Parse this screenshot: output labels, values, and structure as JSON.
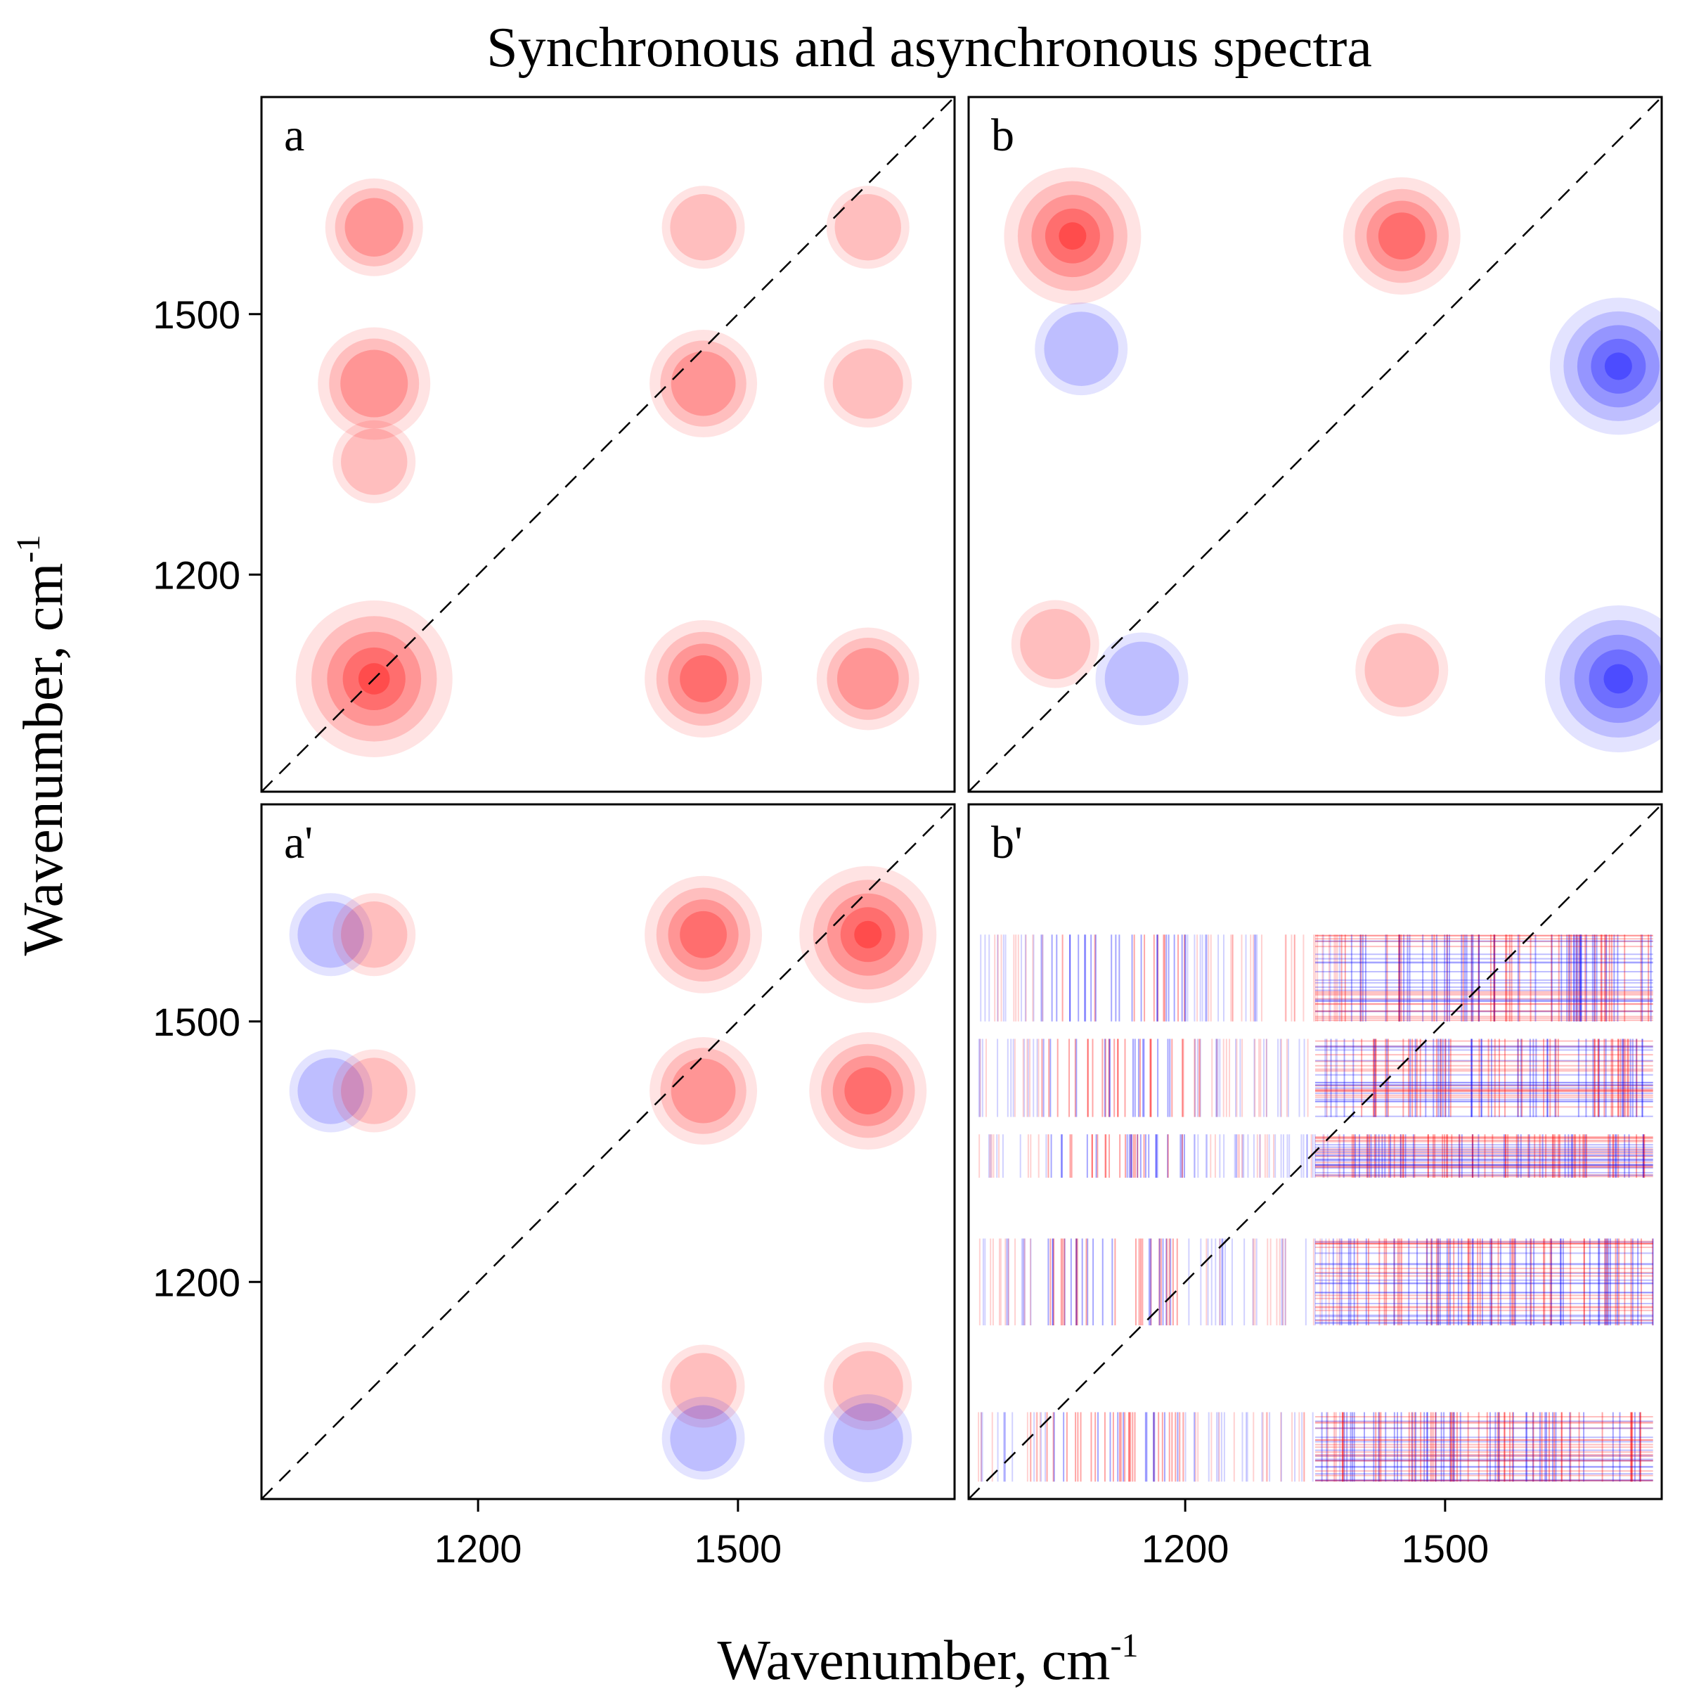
{
  "chart_data": {
    "type": "heatmap",
    "title": "Synchronous and asynchronous spectra",
    "xlabel": {
      "text": "Wavenumber, cm",
      "sup": "-1"
    },
    "ylabel": {
      "text": "Wavenumber, cm",
      "sup": "-1"
    },
    "axis_range": [
      950,
      1750
    ],
    "x_ticks": [
      1200,
      1500
    ],
    "y_ticks": [
      1200,
      1500
    ],
    "colors": {
      "positive": "#ff0000",
      "negative": "#0000ff",
      "background": "#ffffff",
      "diagonal": "#000000"
    },
    "panels": [
      {
        "id": "a",
        "label": "a",
        "kind": "synchronous",
        "peaks": [
          {
            "x": 1080,
            "y": 1600,
            "v": 0.35
          },
          {
            "x": 1080,
            "y": 1420,
            "v": 0.5
          },
          {
            "x": 1080,
            "y": 1330,
            "v": 0.2
          },
          {
            "x": 1080,
            "y": 1080,
            "v": 0.95
          },
          {
            "x": 1460,
            "y": 1600,
            "v": 0.2
          },
          {
            "x": 1460,
            "y": 1420,
            "v": 0.45
          },
          {
            "x": 1460,
            "y": 1080,
            "v": 0.55
          },
          {
            "x": 1650,
            "y": 1600,
            "v": 0.2
          },
          {
            "x": 1650,
            "y": 1420,
            "v": 0.25
          },
          {
            "x": 1650,
            "y": 1080,
            "v": 0.4
          }
        ]
      },
      {
        "id": "b",
        "label": "b",
        "kind": "asynchronous",
        "peaks": [
          {
            "x": 1070,
            "y": 1590,
            "v": 0.75
          },
          {
            "x": 1450,
            "y": 1590,
            "v": 0.55
          },
          {
            "x": 1080,
            "y": 1460,
            "v": -0.3
          },
          {
            "x": 1700,
            "y": 1440,
            "v": -0.75
          },
          {
            "x": 1700,
            "y": 1080,
            "v": -0.85
          },
          {
            "x": 1450,
            "y": 1090,
            "v": 0.3
          },
          {
            "x": 1050,
            "y": 1120,
            "v": 0.25
          },
          {
            "x": 1150,
            "y": 1080,
            "v": -0.3
          }
        ]
      },
      {
        "id": "a2",
        "label": "a'",
        "kind": "synchronous",
        "peaks": [
          {
            "x": 1460,
            "y": 1600,
            "v": 0.55
          },
          {
            "x": 1650,
            "y": 1600,
            "v": 0.75
          },
          {
            "x": 1460,
            "y": 1420,
            "v": 0.45
          },
          {
            "x": 1650,
            "y": 1420,
            "v": 0.55
          },
          {
            "x": 1030,
            "y": 1600,
            "v": -0.2
          },
          {
            "x": 1080,
            "y": 1600,
            "v": 0.2
          },
          {
            "x": 1030,
            "y": 1420,
            "v": -0.2
          },
          {
            "x": 1080,
            "y": 1420,
            "v": 0.2
          },
          {
            "x": 1460,
            "y": 1080,
            "v": 0.2
          },
          {
            "x": 1650,
            "y": 1080,
            "v": 0.25
          },
          {
            "x": 1460,
            "y": 1020,
            "v": -0.2
          },
          {
            "x": 1650,
            "y": 1020,
            "v": -0.25
          }
        ]
      },
      {
        "id": "b2",
        "label": "b'",
        "kind": "asynchronous",
        "peaks": []
      }
    ]
  }
}
